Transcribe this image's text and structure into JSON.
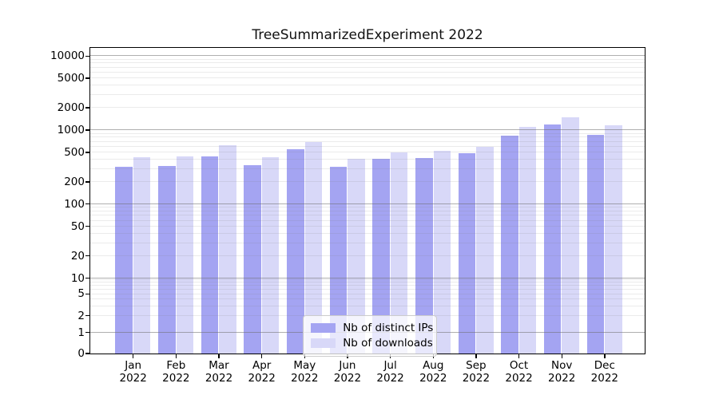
{
  "title": "TreeSummarizedExperiment 2022",
  "legend": {
    "items": [
      {
        "label": "Nb of distinct IPs",
        "color": "#a4a4f2"
      },
      {
        "label": "Nb of downloads",
        "color": "#d8d8f8"
      }
    ]
  },
  "chart_data": {
    "type": "bar",
    "title": "TreeSummarizedExperiment 2022",
    "categories": [
      "Jan 2022",
      "Feb 2022",
      "Mar 2022",
      "Apr 2022",
      "May 2022",
      "Jun 2022",
      "Jul 2022",
      "Aug 2022",
      "Sep 2022",
      "Oct 2022",
      "Nov 2022",
      "Dec 2022"
    ],
    "series": [
      {
        "name": "Nb of distinct IPs",
        "color": "#a4a4f2",
        "values": [
          315,
          325,
          440,
          330,
          545,
          320,
          410,
          420,
          490,
          835,
          1170,
          855
        ]
      },
      {
        "name": "Nb of downloads",
        "color": "#d8d8f8",
        "values": [
          430,
          440,
          625,
          425,
          685,
          410,
          495,
          525,
          595,
          1095,
          1490,
          1160
        ]
      }
    ],
    "yscale": "symlog",
    "yticks": [
      0,
      1,
      2,
      5,
      10,
      20,
      50,
      100,
      200,
      500,
      1000,
      2000,
      5000,
      10000
    ],
    "major_grid_values": [
      1,
      10,
      100,
      1000,
      10000
    ],
    "ylim": [
      0,
      13000
    ],
    "grid": true,
    "legend_position": "lower center"
  }
}
